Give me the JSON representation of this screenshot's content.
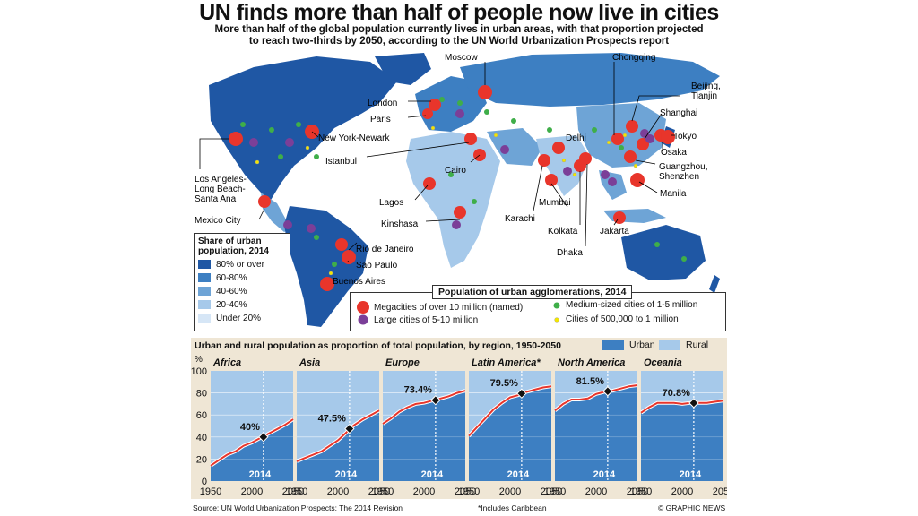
{
  "headline": "UN finds more than half of people now live in cities",
  "standfirst": [
    "More than half of the global population currently lives in urban areas, with that proportion projected",
    "to reach two-thirds by 2050, according to the UN World Urbanization Prospects report"
  ],
  "map": {
    "labels": {
      "moscow": "Moscow",
      "chongqing": "Chongqing",
      "beijing": "Beijing,\nTianjin",
      "shanghai": "Shanghai",
      "london": "London",
      "paris": "Paris",
      "new_york": "New York-Newark",
      "tokyo": "Tokyo",
      "osaka": "Osaka",
      "delhi": "Delhi",
      "istanbul": "Istanbul",
      "cairo": "Cairo",
      "guangzhou": "Guangzhou,\nShenzhen",
      "los_angeles": "Los Angeles-\nLong Beach-\nSanta Ana",
      "manila": "Manila",
      "lagos": "Lagos",
      "mumbai": "Mumbai",
      "karachi": "Karachi",
      "mexico_city": "Mexico City",
      "kinshasa": "Kinshasa",
      "kolkata": "Kolkata",
      "jakarta": "Jakarta",
      "dhaka": "Dhaka",
      "rio": "Rio de Janeiro",
      "sao_paulo": "Sao Paulo",
      "buenos_aires": "Buenos Aires"
    }
  },
  "share_legend": {
    "title": [
      "Share of urban",
      "population, 2014"
    ],
    "items": [
      {
        "label": "80% or over",
        "color": "#1f57a4"
      },
      {
        "label": "60-80%",
        "color": "#3d7fc2"
      },
      {
        "label": "40-60%",
        "color": "#6ea4d6"
      },
      {
        "label": "20-40%",
        "color": "#a6c9ea"
      },
      {
        "label": "Under 20%",
        "color": "#d6e6f6"
      }
    ]
  },
  "pop_legend": {
    "title": "Population of urban agglomerations, 2014",
    "items": [
      {
        "label": "Megacities of over 10 million (named)",
        "color": "#e8352b"
      },
      {
        "label": "Large cities of 5-10 million",
        "color": "#7b3f98"
      },
      {
        "label": "Medium-sized cities of 1-5 million",
        "color": "#3fae49"
      },
      {
        "label": "Cities of 500,000 to 1 million",
        "color": "#f3e600"
      }
    ]
  },
  "chart_panel": {
    "title": "Urban and rural population as proportion of total population, by region, 1950-2050",
    "urban_label": "Urban",
    "rural_label": "Rural",
    "y_unit": "%",
    "marker_label": "2014",
    "colors": {
      "urban": "#3d7fc2",
      "rural": "#a6c9ea",
      "line": "#e8352b",
      "panel_bg": "#efe6d5"
    }
  },
  "chart_data": [
    {
      "type": "area",
      "title": "Africa",
      "x": [
        1950,
        1960,
        1970,
        1980,
        1990,
        2000,
        2010,
        2014,
        2020,
        2030,
        2040,
        2050
      ],
      "urban": [
        14,
        19,
        24,
        27,
        32,
        35,
        39,
        40,
        43,
        47,
        51,
        56
      ],
      "marker": {
        "x": 2014,
        "label": "40%"
      },
      "ylim": [
        0,
        100
      ]
    },
    {
      "type": "area",
      "title": "Asia",
      "x": [
        1950,
        1960,
        1970,
        1980,
        1990,
        2000,
        2010,
        2014,
        2020,
        2030,
        2040,
        2050
      ],
      "urban": [
        18,
        21,
        24,
        27,
        32,
        37,
        44,
        47.5,
        51,
        56,
        60,
        64
      ],
      "marker": {
        "x": 2014,
        "label": "47.5%"
      },
      "ylim": [
        0,
        100
      ]
    },
    {
      "type": "area",
      "title": "Europe",
      "x": [
        1950,
        1960,
        1970,
        1980,
        1990,
        2000,
        2010,
        2014,
        2020,
        2030,
        2040,
        2050
      ],
      "urban": [
        52,
        57,
        63,
        67,
        70,
        71,
        73,
        73.4,
        75,
        77,
        80,
        82
      ],
      "marker": {
        "x": 2014,
        "label": "73.4%"
      },
      "ylim": [
        0,
        100
      ]
    },
    {
      "type": "area",
      "title": "Latin America*",
      "x": [
        1950,
        1960,
        1970,
        1980,
        1990,
        2000,
        2010,
        2014,
        2020,
        2030,
        2040,
        2050
      ],
      "urban": [
        41,
        49,
        57,
        65,
        71,
        76,
        78,
        79.5,
        81,
        83,
        85,
        86
      ],
      "marker": {
        "x": 2014,
        "label": "79.5%"
      },
      "ylim": [
        0,
        100
      ]
    },
    {
      "type": "area",
      "title": "North America",
      "x": [
        1950,
        1960,
        1970,
        1980,
        1990,
        2000,
        2010,
        2014,
        2020,
        2030,
        2040,
        2050
      ],
      "urban": [
        64,
        70,
        74,
        74,
        75,
        79,
        81,
        81.5,
        82,
        84,
        86,
        87
      ],
      "marker": {
        "x": 2014,
        "label": "81.5%"
      },
      "ylim": [
        0,
        100
      ]
    },
    {
      "type": "area",
      "title": "Oceania",
      "x": [
        1950,
        1960,
        1970,
        1980,
        1990,
        2000,
        2010,
        2014,
        2020,
        2030,
        2040,
        2050
      ],
      "urban": [
        62,
        67,
        71,
        71,
        71,
        70,
        71,
        70.8,
        71,
        71,
        72,
        73
      ],
      "marker": {
        "x": 2014,
        "label": "70.8%"
      },
      "ylim": [
        0,
        100
      ]
    }
  ],
  "axis": {
    "y_ticks": [
      "0",
      "20",
      "40",
      "60",
      "80",
      "100"
    ],
    "x_ticks": [
      "1950",
      "2000",
      "2050"
    ]
  },
  "footer": {
    "source": "Source: UN World Urbanization Prospects: The 2014 Revision",
    "note": "*Includes Caribbean",
    "credit": "© GRAPHIC NEWS"
  }
}
